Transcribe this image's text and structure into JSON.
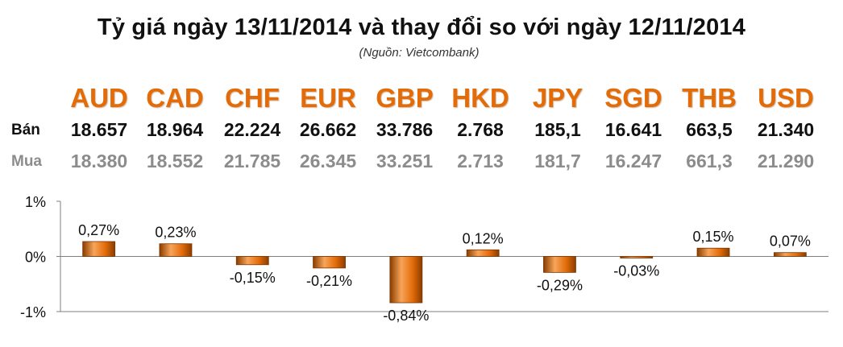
{
  "header": {
    "title": "Tỷ giá ngày 13/11/2014 và thay đổi so với ngày 12/11/2014",
    "source": "(Nguồn: Vietcombank)"
  },
  "rates": {
    "sell_label": "Bán",
    "buy_label": "Mua",
    "currencies": [
      "AUD",
      "CAD",
      "CHF",
      "EUR",
      "GBP",
      "HKD",
      "JPY",
      "SGD",
      "THB",
      "USD"
    ],
    "sell": [
      "18.657",
      "18.964",
      "22.224",
      "26.662",
      "33.786",
      "2.768",
      "185,1",
      "16.641",
      "663,5",
      "21.340"
    ],
    "buy": [
      "18.380",
      "18.552",
      "21.785",
      "26.345",
      "33.251",
      "2.713",
      "181,7",
      "16.247",
      "661,3",
      "21.290"
    ]
  },
  "chart_data": {
    "type": "bar",
    "categories": [
      "AUD",
      "CAD",
      "CHF",
      "EUR",
      "GBP",
      "HKD",
      "JPY",
      "SGD",
      "THB",
      "USD"
    ],
    "values": [
      0.27,
      0.23,
      -0.15,
      -0.21,
      -0.84,
      0.12,
      -0.29,
      -0.03,
      0.15,
      0.07
    ],
    "data_labels": [
      "0,27%",
      "0,23%",
      "-0,15%",
      "-0,21%",
      "-0,84%",
      "0,12%",
      "-0,29%",
      "-0,03%",
      "0,15%",
      "0,07%"
    ],
    "ylim": [
      -1,
      1
    ],
    "y_ticks": [
      1,
      0,
      -1
    ],
    "y_tick_labels": [
      "1%",
      "0%",
      "-1%"
    ],
    "grid": false,
    "bar_color": "#e36c09",
    "bar_dark": "#8a3d00",
    "bar_light": "#f7a55a"
  }
}
